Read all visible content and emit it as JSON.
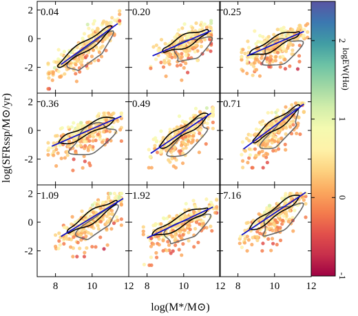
{
  "chart_data": {
    "type": "scatter",
    "layout": "3x3 grid of scatter panels with shared axes and a vertical colorbar on the right",
    "xlabel": "log(M*/M⊙)",
    "ylabel": "log(SFRssp/M⊙/yr)",
    "xlim": [
      7,
      12
    ],
    "ylim": [
      -3.8,
      2.6
    ],
    "x_ticks": [
      8,
      10,
      12
    ],
    "y_ticks": [
      -2,
      0,
      2
    ],
    "colorbar": {
      "label": "logEW(Hα)",
      "range": [
        -1,
        2.5
      ],
      "ticks": [
        -1,
        0,
        1,
        2
      ],
      "colors": [
        "#9e0142",
        "#c72f4b",
        "#e2504b",
        "#f47d4d",
        "#fba85e",
        "#fdd381",
        "#fef2a9",
        "#f4fab0",
        "#d1edaa",
        "#9fd7a4",
        "#6cc2a5",
        "#419da4",
        "#3b78b0",
        "#5a54a3"
      ]
    },
    "contour_colors": {
      "inner": "#000000",
      "outer": "#666666"
    },
    "fit_line_color": "#1010c8",
    "panels": [
      {
        "label": "0.04",
        "fit": {
          "slope": 0.92,
          "x0": 8.3,
          "x1": 11.4,
          "y_at_x0": -1.8
        },
        "cloud": {
          "x": [
            7.6,
            11.5
          ],
          "y": [
            -3.5,
            2.0
          ],
          "cx": 9.6,
          "cy": -1.0
        }
      },
      {
        "label": "0.20",
        "fit": {
          "slope": 0.55,
          "x0": 8.3,
          "x1": 11.5,
          "y_at_x0": -1.2
        },
        "cloud": {
          "x": [
            8.2,
            11.5
          ],
          "y": [
            -3.4,
            1.7
          ],
          "cx": 10.1,
          "cy": -0.5
        }
      },
      {
        "label": "0.25",
        "fit": {
          "slope": 0.55,
          "x0": 8.5,
          "x1": 11.6,
          "y_at_x0": -1.2
        },
        "cloud": {
          "x": [
            8.2,
            11.8
          ],
          "y": [
            -2.8,
            1.9
          ],
          "cx": 10.0,
          "cy": -0.2
        }
      },
      {
        "label": "0.36",
        "fit": {
          "slope": 0.55,
          "x0": 7.8,
          "x1": 11.6,
          "y_at_x0": -1.1
        },
        "cloud": {
          "x": [
            7.6,
            11.6
          ],
          "y": [
            -3.0,
            1.2
          ],
          "cx": 9.7,
          "cy": -0.4
        }
      },
      {
        "label": "0.49",
        "fit": {
          "slope": 0.85,
          "x0": 8.2,
          "x1": 11.5,
          "y_at_x0": -1.6
        },
        "cloud": {
          "x": [
            8.1,
            11.6
          ],
          "y": [
            -2.6,
            1.6
          ],
          "cx": 10.0,
          "cy": -0.1
        }
      },
      {
        "label": "0.71",
        "fit": {
          "slope": 0.95,
          "x0": 8.3,
          "x1": 11.6,
          "y_at_x0": -1.3
        },
        "cloud": {
          "x": [
            8.2,
            11.6
          ],
          "y": [
            -2.6,
            1.9
          ],
          "cx": 10.1,
          "cy": 0.3
        }
      },
      {
        "label": "1.09",
        "fit": {
          "slope": 0.78,
          "x0": 8.3,
          "x1": 11.7,
          "y_at_x0": -1.0
        },
        "cloud": {
          "x": [
            8.0,
            11.6
          ],
          "y": [
            -2.4,
            2.0
          ],
          "cx": 10.0,
          "cy": 0.3
        }
      },
      {
        "label": "1.92",
        "fit": {
          "slope": 0.6,
          "x0": 8.0,
          "x1": 11.6,
          "y_at_x0": -1.1
        },
        "cloud": {
          "x": [
            7.8,
            11.8
          ],
          "y": [
            -3.0,
            1.6
          ],
          "cx": 9.8,
          "cy": 0.0
        }
      },
      {
        "label": "7.16",
        "fit": {
          "slope": 0.85,
          "x0": 8.2,
          "x1": 11.7,
          "y_at_x0": -0.9
        },
        "cloud": {
          "x": [
            8.1,
            11.7
          ],
          "y": [
            -2.0,
            2.0
          ],
          "cx": 10.0,
          "cy": 0.4
        }
      }
    ]
  }
}
